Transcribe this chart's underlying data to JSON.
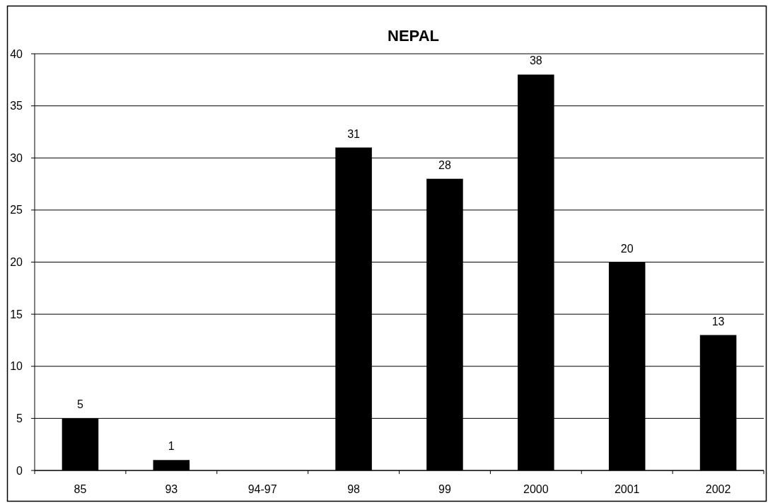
{
  "chart_data": {
    "type": "bar",
    "title": "NEPAL",
    "categories": [
      "85",
      "93",
      "94-97",
      "98",
      "99",
      "2000",
      "2001",
      "2002"
    ],
    "values": [
      5,
      1,
      null,
      31,
      28,
      38,
      20,
      13
    ],
    "color": "#000000",
    "ylim": [
      0,
      40
    ],
    "yticks": [
      0,
      5,
      10,
      15,
      20,
      25,
      30,
      35,
      40
    ],
    "grid": "y",
    "data_labels": true
  }
}
